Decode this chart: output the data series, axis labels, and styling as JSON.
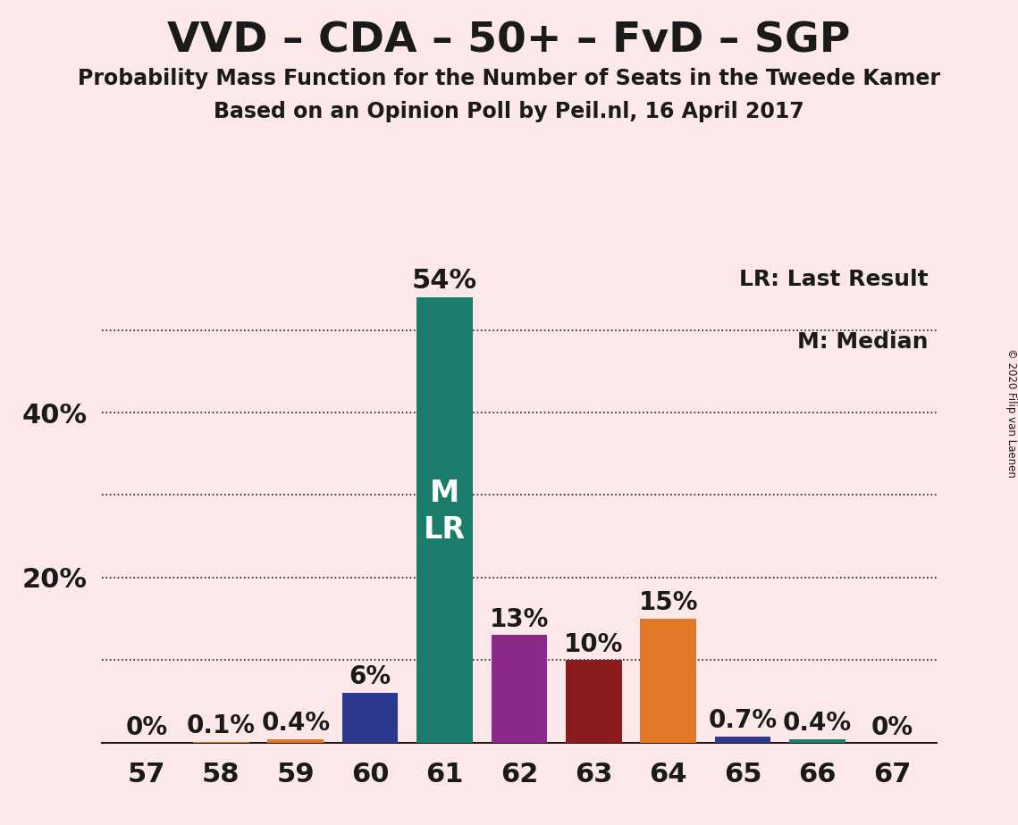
{
  "title": "VVD – CDA – 50+ – FvD – SGP",
  "subtitle1": "Probability Mass Function for the Number of Seats in the Tweede Kamer",
  "subtitle2": "Based on an Opinion Poll by Peil.nl, 16 April 2017",
  "copyright": "© 2020 Filip van Laenen",
  "categories": [
    57,
    58,
    59,
    60,
    61,
    62,
    63,
    64,
    65,
    66,
    67
  ],
  "values": [
    0.0,
    0.1,
    0.4,
    6.0,
    54.0,
    13.0,
    10.0,
    15.0,
    0.7,
    0.4,
    0.0
  ],
  "bar_colors": [
    "#1a9e5c",
    "#e07828",
    "#e07828",
    "#2b3990",
    "#1a7d6b",
    "#8b2a8b",
    "#8b1a1a",
    "#e07828",
    "#2b3990",
    "#1a7d6b",
    "#1a9e5c"
  ],
  "label_colors": {
    "57": "#1a1a1a",
    "58": "#1a1a1a",
    "59": "#1a1a1a",
    "60": "#1a1a1a",
    "61": "#ffffff",
    "62": "#1a1a1a",
    "63": "#1a1a1a",
    "64": "#1a1a1a",
    "65": "#1a1a1a",
    "66": "#1a1a1a",
    "67": "#1a1a1a"
  },
  "background_color": "#fce8e8",
  "ylim": [
    0,
    58
  ],
  "grid_lines": [
    10,
    20,
    30,
    40,
    50
  ],
  "ytick_positions": [
    20,
    40
  ],
  "ytick_labels": [
    "20%",
    "40%"
  ],
  "title_fontsize": 34,
  "subtitle_fontsize": 17,
  "axis_fontsize": 22,
  "bar_label_fontsize": 20,
  "legend_fontsize": 18,
  "legend_text1": "LR: Last Result",
  "legend_text2": "M: Median"
}
